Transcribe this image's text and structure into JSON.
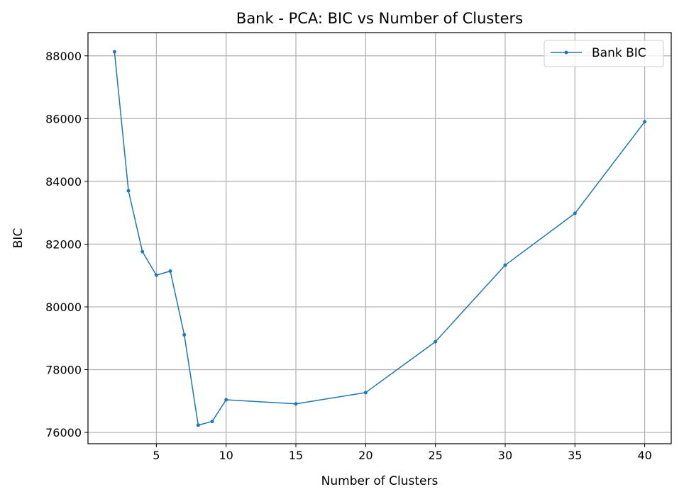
{
  "chart_data": {
    "type": "line",
    "title": "Bank - PCA: BIC vs Number of Clusters",
    "xlabel": "Number of Clusters",
    "ylabel": "BIC",
    "xlim": [
      0.1,
      41.9
    ],
    "ylim": [
      75640,
      88740
    ],
    "xticks": [
      5,
      10,
      15,
      20,
      25,
      30,
      35,
      40
    ],
    "yticks": [
      76000,
      78000,
      80000,
      82000,
      84000,
      86000,
      88000
    ],
    "grid": true,
    "legend_position": "top-right",
    "series": [
      {
        "name": "Bank BIC",
        "color": "#1f77b4",
        "x": [
          2,
          3,
          4,
          5,
          6,
          7,
          8,
          9,
          10,
          15,
          20,
          25,
          30,
          35,
          40
        ],
        "y": [
          88130,
          83700,
          81760,
          81010,
          81140,
          79110,
          76230,
          76350,
          77040,
          76910,
          77270,
          78890,
          81330,
          82980,
          85900
        ]
      }
    ]
  }
}
